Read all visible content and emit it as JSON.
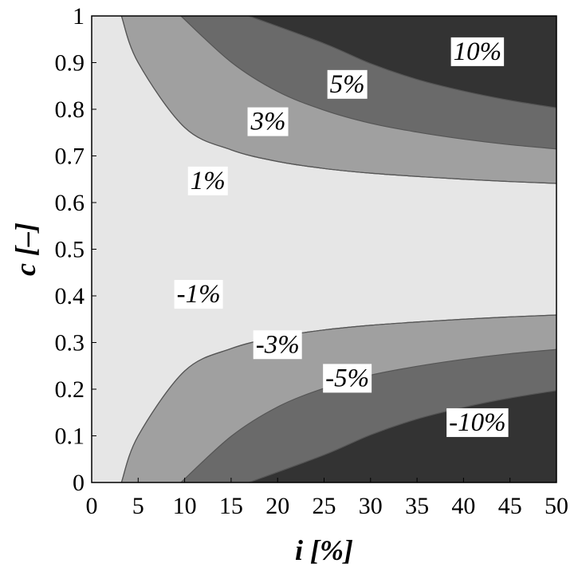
{
  "chart_data": {
    "type": "contour",
    "title": "",
    "xlabel": "i [%]",
    "ylabel": "c [–]",
    "xlim": [
      0,
      50
    ],
    "ylim": [
      0,
      1
    ],
    "x_ticks": [
      "0",
      "5",
      "10",
      "15",
      "20",
      "25",
      "30",
      "35",
      "40",
      "45",
      "50"
    ],
    "y_ticks": [
      "0",
      "0.1",
      "0.2",
      "0.3",
      "0.4",
      "0.5",
      "0.6",
      "0.7",
      "0.8",
      "0.9",
      "1"
    ],
    "grid": false,
    "legend": "none",
    "levels": [
      {
        "label": "10%",
        "value": 10,
        "label_at": {
          "x": 41.5,
          "y": 0.925
        },
        "contour": [
          [
            16.9,
            1.0
          ],
          [
            25,
            0.941
          ],
          [
            30,
            0.898
          ],
          [
            35,
            0.864
          ],
          [
            40,
            0.839
          ],
          [
            45,
            0.819
          ],
          [
            50,
            0.803
          ]
        ]
      },
      {
        "label": "5%",
        "value": 5,
        "label_at": {
          "x": 27.5,
          "y": 0.855
        },
        "contour": [
          [
            9.6,
            1.0
          ],
          [
            15,
            0.901
          ],
          [
            20,
            0.838
          ],
          [
            25,
            0.798
          ],
          [
            30,
            0.77
          ],
          [
            35,
            0.751
          ],
          [
            40,
            0.736
          ],
          [
            45,
            0.724
          ],
          [
            50,
            0.715
          ]
        ]
      },
      {
        "label": "3%",
        "value": 3,
        "label_at": {
          "x": 19.0,
          "y": 0.775
        },
        "contour": [
          [
            3.2,
            1.0
          ],
          [
            5,
            0.9
          ],
          [
            10,
            0.761
          ],
          [
            15,
            0.713
          ],
          [
            20,
            0.688
          ],
          [
            25,
            0.673
          ],
          [
            30,
            0.663
          ],
          [
            35,
            0.656
          ],
          [
            40,
            0.65
          ],
          [
            45,
            0.645
          ],
          [
            50,
            0.641
          ]
        ]
      },
      {
        "label": "1%",
        "value": 1,
        "label_at": {
          "x": 12.5,
          "y": 0.648
        },
        "contour": [
          [
            3.2,
            1.0
          ],
          [
            5,
            0.9
          ],
          [
            10,
            0.761
          ],
          [
            15,
            0.713
          ],
          [
            20,
            0.688
          ],
          [
            25,
            0.673
          ],
          [
            30,
            0.663
          ],
          [
            35,
            0.656
          ],
          [
            40,
            0.65
          ],
          [
            45,
            0.645
          ],
          [
            50,
            0.641
          ]
        ]
      },
      {
        "label": "-1%",
        "value": -1,
        "label_at": {
          "x": 11.5,
          "y": 0.405
        },
        "contour": [
          [
            3.2,
            0.0
          ],
          [
            5,
            0.1
          ],
          [
            10,
            0.239
          ],
          [
            15,
            0.287
          ],
          [
            20,
            0.312
          ],
          [
            25,
            0.327
          ],
          [
            30,
            0.337
          ],
          [
            35,
            0.344
          ],
          [
            40,
            0.35
          ],
          [
            45,
            0.355
          ],
          [
            50,
            0.359
          ]
        ]
      },
      {
        "label": "-3%",
        "value": -3,
        "label_at": {
          "x": 20.0,
          "y": 0.297
        },
        "contour": [
          [
            3.2,
            0.0
          ],
          [
            5,
            0.1
          ],
          [
            10,
            0.239
          ],
          [
            15,
            0.287
          ],
          [
            20,
            0.312
          ],
          [
            25,
            0.327
          ],
          [
            30,
            0.337
          ],
          [
            35,
            0.344
          ],
          [
            40,
            0.35
          ],
          [
            45,
            0.355
          ],
          [
            50,
            0.359
          ]
        ]
      },
      {
        "label": "-5%",
        "value": -5,
        "label_at": {
          "x": 27.5,
          "y": 0.225
        },
        "contour": [
          [
            9.6,
            0.0
          ],
          [
            15,
            0.099
          ],
          [
            20,
            0.162
          ],
          [
            25,
            0.202
          ],
          [
            30,
            0.23
          ],
          [
            35,
            0.249
          ],
          [
            40,
            0.264
          ],
          [
            45,
            0.276
          ],
          [
            50,
            0.285
          ]
        ]
      },
      {
        "label": "-10%",
        "value": -10,
        "label_at": {
          "x": 41.5,
          "y": 0.13
        },
        "contour": [
          [
            16.9,
            0.0
          ],
          [
            25,
            0.059
          ],
          [
            30,
            0.102
          ],
          [
            35,
            0.136
          ],
          [
            40,
            0.161
          ],
          [
            45,
            0.181
          ],
          [
            50,
            0.197
          ]
        ]
      }
    ]
  }
}
